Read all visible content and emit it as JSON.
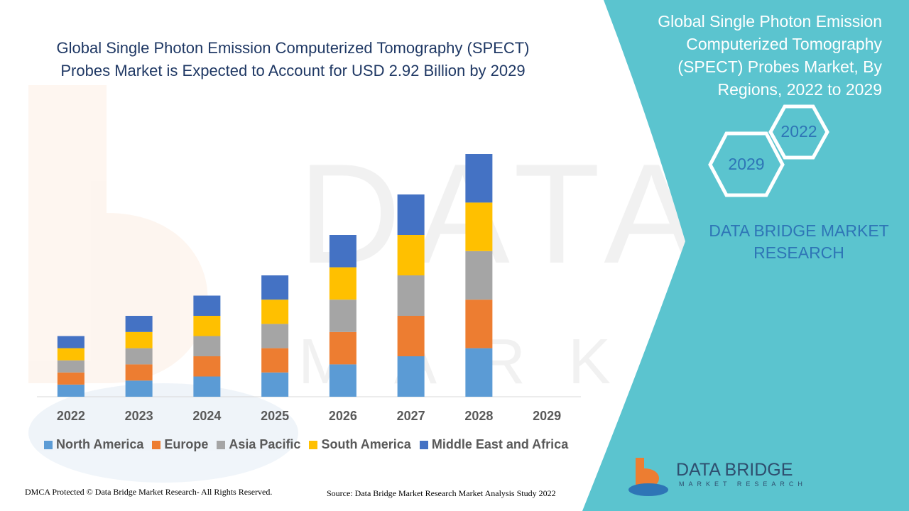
{
  "chart_data": {
    "type": "bar",
    "stacked": true,
    "title": "Global Single Photon Emission Computerized Tomography (SPECT) Probes Market is Expected to Account for USD 2.92 Billion by 2029",
    "categories": [
      "2022",
      "2023",
      "2024",
      "2025",
      "2026",
      "2027",
      "2028",
      "2029"
    ],
    "series": [
      {
        "name": "North America",
        "color": "#5b9bd5",
        "values": [
          0.6,
          0.8,
          1.0,
          1.2,
          1.6,
          2.0,
          2.4,
          0
        ]
      },
      {
        "name": "Europe",
        "color": "#ed7d31",
        "values": [
          0.6,
          0.8,
          1.0,
          1.2,
          1.6,
          2.0,
          2.4,
          0
        ]
      },
      {
        "name": "Asia Pacific",
        "color": "#a5a5a5",
        "values": [
          0.6,
          0.8,
          1.0,
          1.2,
          1.6,
          2.0,
          2.4,
          0
        ]
      },
      {
        "name": "South America",
        "color": "#ffc000",
        "values": [
          0.6,
          0.8,
          1.0,
          1.2,
          1.6,
          2.0,
          2.4,
          0
        ]
      },
      {
        "name": "Middle East and Africa",
        "color": "#4472c4",
        "values": [
          0.6,
          0.8,
          1.0,
          1.2,
          1.6,
          2.0,
          2.4,
          0
        ]
      }
    ],
    "ylim": [
      0,
      14
    ],
    "grid": false,
    "legend_position": "bottom"
  },
  "side_panel": {
    "title": "Global Single Photon Emission Computerized Tomography (SPECT) Probes Market, By Regions, 2022 to 2029",
    "hex_start": "2022",
    "hex_end": "2029",
    "brand": "DATA BRIDGE MARKET RESEARCH",
    "panel_color": "#5bc4cf"
  },
  "footer": {
    "copyright": "DMCA Protected © Data Bridge Market Research- All Rights Reserved.",
    "source": "Source: Data Bridge Market Research Market Analysis Study 2022"
  },
  "logo": {
    "name": "DATA BRIDGE",
    "tagline": "MARKET RESEARCH"
  }
}
